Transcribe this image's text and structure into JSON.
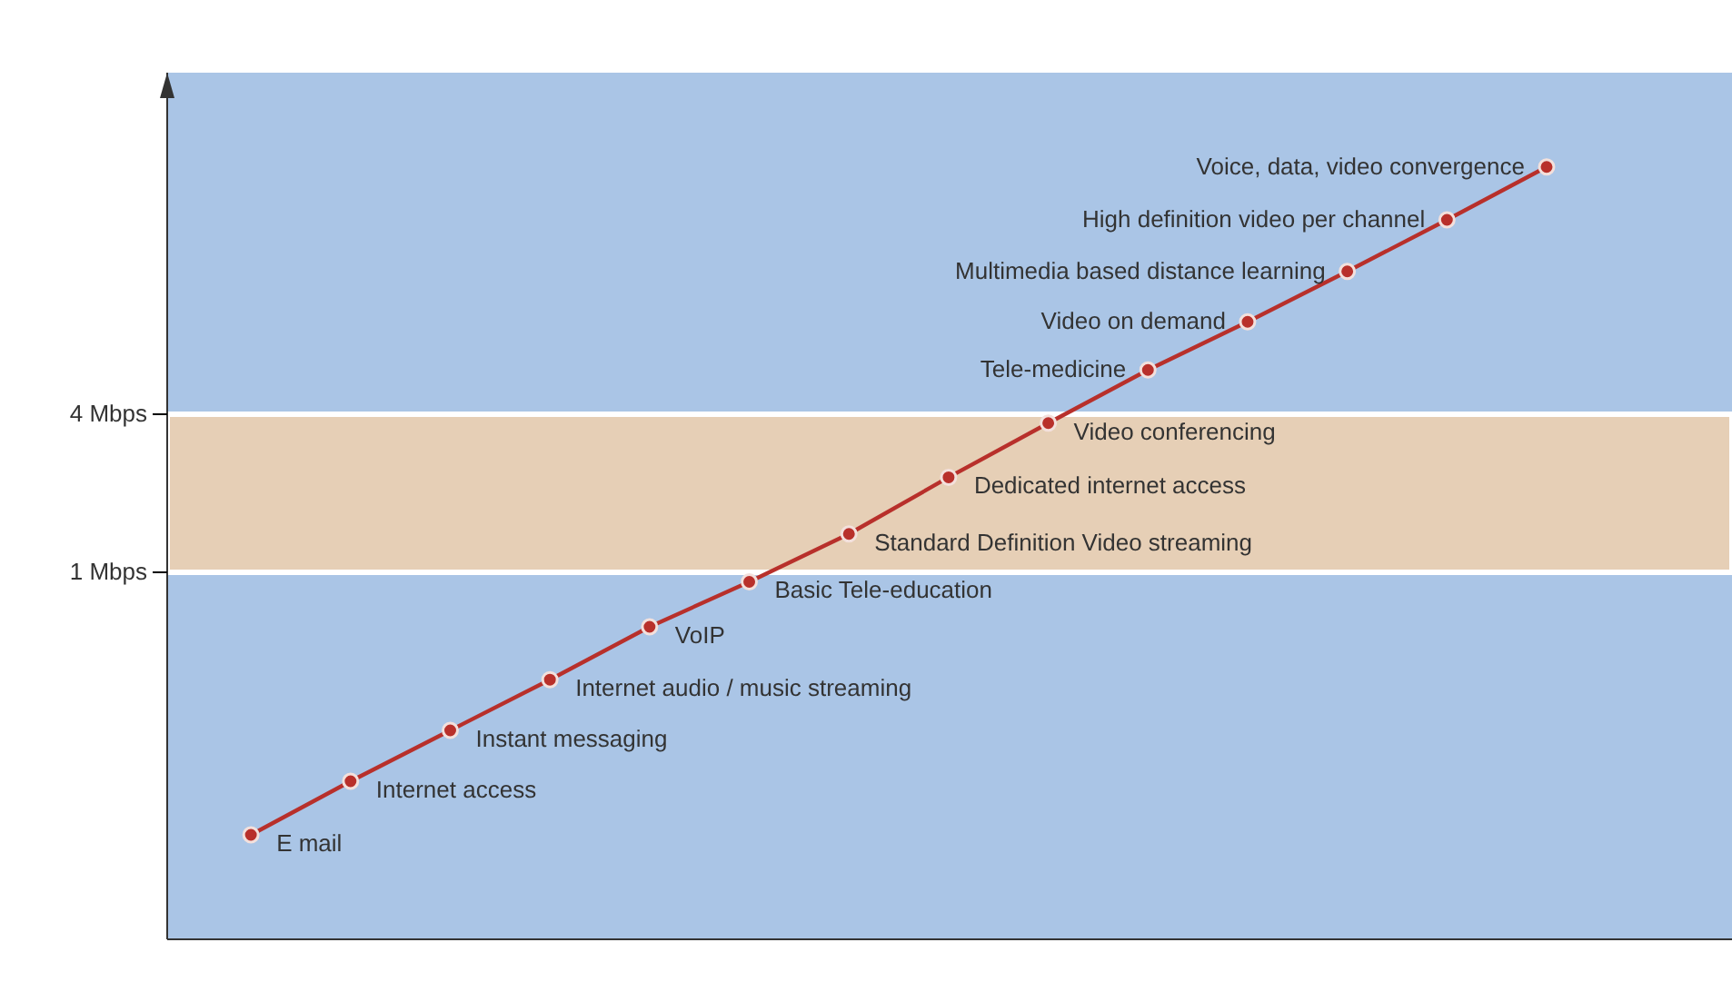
{
  "chart_data": {
    "type": "line",
    "log": "y",
    "categories": [
      null,
      null,
      null,
      null,
      null,
      null,
      null,
      null,
      null,
      null,
      null,
      null,
      null,
      null
    ],
    "series": [
      {
        "color": "#b8302b",
        "values": [
          0.1,
          0.16,
          0.25,
          0.39,
          0.62,
          0.92,
          1.4,
          2.3,
          3.7,
          5.9,
          9,
          14,
          22,
          35
        ]
      }
    ],
    "marker": "circle",
    "line_style": "solid",
    "ylim": [
      0.04,
      80
    ],
    "yticks": [
      {
        "value": 1,
        "label": "1 Mbps"
      },
      {
        "value": 4,
        "label": "4 Mbps"
      }
    ],
    "tick_labels": "y",
    "bands": [
      {
        "axis": "y",
        "from": 1,
        "to": 4,
        "color": "#e6cfb6"
      }
    ],
    "annotations": [
      "E mail",
      "Internet access",
      "Instant messaging",
      "Internet audio / music streaming",
      "VoIP",
      "Basic Tele-education",
      "Standard Definition Video streaming",
      "Dedicated internet access",
      "Video conferencing",
      "Tele-medicine",
      "Video on demand",
      "Multimedia based distance learning",
      "High definition video per channel",
      "Voice, data, video convergence"
    ]
  }
}
